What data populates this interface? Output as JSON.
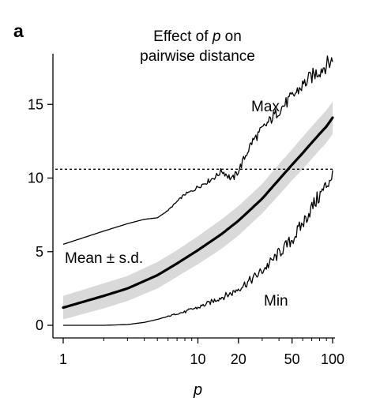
{
  "panel_label": "a",
  "title_part1": "Effect of ",
  "title_var": "p",
  "title_part2": " on",
  "title_line2": "pairwise distance",
  "chart_data": {
    "type": "line",
    "title": "Effect of p on pairwise distance",
    "xlabel": "p",
    "ylabel": "",
    "xscale": "log",
    "xlim": [
      1,
      100
    ],
    "ylim": [
      -0.8,
      18.5
    ],
    "xticks": [
      1,
      10,
      20,
      50,
      100
    ],
    "xtick_labels": [
      "1",
      "10",
      "20",
      "50",
      "100"
    ],
    "yticks": [
      0,
      5,
      10,
      15
    ],
    "ytick_labels": [
      "0",
      "5",
      "10",
      "15"
    ],
    "grid": false,
    "legend": "none",
    "annotations": [
      "Max",
      "Mean ± s.d.",
      "Min"
    ],
    "reference_line": {
      "y": 10.6,
      "style": "dashed"
    },
    "series": [
      {
        "name": "Max",
        "x": [
          1,
          2,
          3,
          4,
          5,
          6,
          7,
          8,
          9,
          10,
          12,
          14,
          15,
          16,
          18,
          20,
          22,
          25,
          30,
          35,
          40,
          50,
          60,
          70,
          80,
          90,
          100
        ],
        "y": [
          5.5,
          6.4,
          6.9,
          7.2,
          7.3,
          7.8,
          8.4,
          8.9,
          9.1,
          9.4,
          9.8,
          10.2,
          10.5,
          10.3,
          9.9,
          10.5,
          11.3,
          12.4,
          13.3,
          14.0,
          14.6,
          15.5,
          16.3,
          16.9,
          17.3,
          17.7,
          18.0
        ]
      },
      {
        "name": "Mean ± s.d.",
        "x": [
          1,
          2,
          3,
          5,
          7,
          10,
          15,
          20,
          30,
          40,
          50,
          60,
          70,
          80,
          90,
          100
        ],
        "y": [
          1.2,
          2.0,
          2.5,
          3.4,
          4.2,
          5.1,
          6.2,
          7.1,
          8.6,
          9.9,
          10.9,
          11.7,
          12.4,
          13.0,
          13.5,
          14.1
        ],
        "sd": [
          0.8,
          0.85,
          0.85,
          0.9,
          0.9,
          0.95,
          1.0,
          1.0,
          1.0,
          1.05,
          1.05,
          1.1,
          1.1,
          1.1,
          1.1,
          1.1
        ]
      },
      {
        "name": "Min",
        "x": [
          1,
          2,
          3,
          4,
          5,
          6,
          7,
          8,
          9,
          10,
          12,
          14,
          16,
          18,
          20,
          25,
          30,
          35,
          40,
          50,
          60,
          70,
          80,
          90,
          100
        ],
        "y": [
          0.0,
          0.0,
          0.05,
          0.2,
          0.4,
          0.6,
          0.8,
          0.9,
          1.1,
          1.2,
          1.5,
          1.8,
          2.0,
          2.2,
          2.5,
          3.1,
          3.7,
          4.3,
          4.9,
          5.8,
          6.9,
          8.0,
          8.8,
          9.5,
          10.3
        ]
      }
    ]
  }
}
